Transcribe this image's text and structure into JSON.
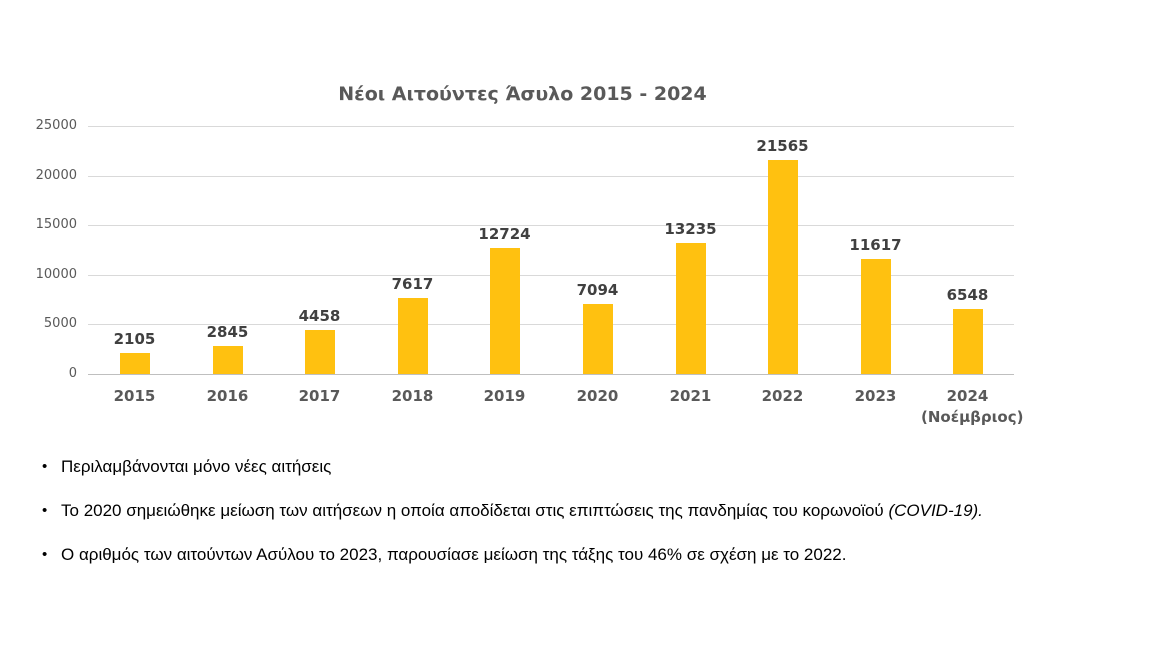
{
  "chart": {
    "title": "Νέοι Αιτούντες Άσυλο 2015 - 2024"
  },
  "chart_data": {
    "type": "bar",
    "title": "Νέοι Αιτούντες Άσυλο 2015 - 2024",
    "categories": [
      "2015",
      "2016",
      "2017",
      "2018",
      "2019",
      "2020",
      "2021",
      "2022",
      "2023",
      "2024"
    ],
    "category_sublabels": [
      "",
      "",
      "",
      "",
      "",
      "",
      "",
      "",
      "",
      "(Νοέμβριος)"
    ],
    "values": [
      2105,
      2845,
      4458,
      7617,
      12724,
      7094,
      13235,
      21565,
      11617,
      6548
    ],
    "xlabel": "",
    "ylabel": "",
    "ylim": [
      0,
      25000
    ],
    "yticks": [
      0,
      5000,
      10000,
      15000,
      20000,
      25000
    ],
    "grid": "horizontal",
    "legend": "none",
    "colors": {
      "bar": "#FFC110",
      "gridline": "#D9D9D9",
      "axis_line": "#BFBFBF",
      "title_text": "#595959",
      "axis_text": "#595959",
      "data_label_text": "#404040"
    }
  },
  "notes": [
    {
      "segments": [
        {
          "t": "Περιλαμβάνονται μόνο νέες αιτήσεις",
          "i": false
        }
      ]
    },
    {
      "segments": [
        {
          "t": "Το 2020 σημειώθηκε μείωση των αιτήσεων η οποία αποδίδεται στις επιπτώσεις της πανδημίας του κορωνοϊού ",
          "i": false
        },
        {
          "t": "(COVID-19).",
          "i": true
        }
      ]
    },
    {
      "segments": [
        {
          "t": "Ο αριθμός των αιτούντων Ασύλου το 2023, παρουσίασε μείωση της τάξης του 46% σε σχέση με το 2022.",
          "i": false
        }
      ]
    }
  ]
}
